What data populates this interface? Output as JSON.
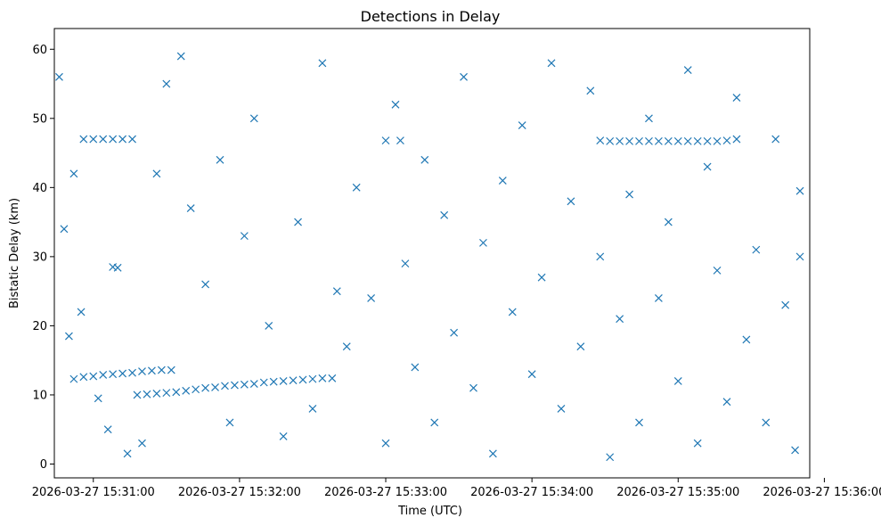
{
  "chart_data": {
    "type": "scatter",
    "title": "Detections in Delay",
    "xlabel": "Time (UTC)",
    "ylabel": "Bistatic Delay (km)",
    "marker": "x",
    "marker_color": "#1f77b4",
    "grid": false,
    "x_date": "2026-03-27",
    "x_ticks": [
      "15:31:00",
      "15:32:00",
      "15:33:00",
      "15:34:00",
      "15:35:00",
      "15:36:00"
    ],
    "x_tick_labels": [
      "2026-03-27 15:31:00",
      "2026-03-27 15:32:00",
      "2026-03-27 15:33:00",
      "2026-03-27 15:34:00",
      "2026-03-27 15:35:00",
      "2026-03-27 15:36:00"
    ],
    "xlim": [
      "15:30:44",
      "15:35:54"
    ],
    "y_ticks": [
      0,
      10,
      20,
      30,
      40,
      50,
      60
    ],
    "ylim": [
      -2,
      63
    ],
    "series": [
      {
        "values": [
          [
            "15:30:52",
            12.3
          ],
          [
            "15:30:56",
            12.6
          ],
          [
            "15:31:00",
            12.7
          ],
          [
            "15:31:04",
            12.9
          ],
          [
            "15:31:08",
            13.0
          ],
          [
            "15:31:12",
            13.1
          ],
          [
            "15:31:16",
            13.2
          ],
          [
            "15:31:20",
            13.4
          ],
          [
            "15:31:24",
            13.5
          ],
          [
            "15:31:28",
            13.6
          ],
          [
            "15:31:32",
            13.6
          ],
          [
            "15:31:18",
            10.0
          ],
          [
            "15:31:22",
            10.1
          ],
          [
            "15:31:26",
            10.2
          ],
          [
            "15:31:30",
            10.3
          ],
          [
            "15:31:34",
            10.4
          ],
          [
            "15:31:38",
            10.6
          ],
          [
            "15:31:42",
            10.8
          ],
          [
            "15:31:46",
            11.0
          ],
          [
            "15:31:50",
            11.1
          ],
          [
            "15:31:54",
            11.3
          ],
          [
            "15:31:58",
            11.4
          ],
          [
            "15:32:02",
            11.5
          ],
          [
            "15:32:06",
            11.6
          ],
          [
            "15:32:10",
            11.8
          ],
          [
            "15:32:14",
            11.9
          ],
          [
            "15:32:18",
            12.0
          ],
          [
            "15:32:22",
            12.1
          ],
          [
            "15:32:26",
            12.2
          ],
          [
            "15:32:30",
            12.3
          ],
          [
            "15:32:34",
            12.4
          ],
          [
            "15:32:38",
            12.4
          ],
          [
            "15:30:56",
            47.0
          ],
          [
            "15:31:00",
            47.0
          ],
          [
            "15:31:04",
            47.0
          ],
          [
            "15:31:08",
            47.0
          ],
          [
            "15:31:12",
            47.0
          ],
          [
            "15:31:16",
            47.0
          ],
          [
            "15:31:08",
            28.5
          ],
          [
            "15:31:10",
            28.4
          ],
          [
            "15:33:00",
            46.8
          ],
          [
            "15:33:06",
            46.8
          ],
          [
            "15:34:28",
            46.8
          ],
          [
            "15:34:32",
            46.7
          ],
          [
            "15:34:36",
            46.7
          ],
          [
            "15:34:40",
            46.7
          ],
          [
            "15:34:44",
            46.7
          ],
          [
            "15:34:48",
            46.7
          ],
          [
            "15:34:52",
            46.7
          ],
          [
            "15:34:56",
            46.7
          ],
          [
            "15:35:00",
            46.7
          ],
          [
            "15:35:04",
            46.7
          ],
          [
            "15:35:08",
            46.7
          ],
          [
            "15:35:12",
            46.7
          ],
          [
            "15:35:16",
            46.7
          ],
          [
            "15:35:20",
            46.8
          ],
          [
            "15:35:24",
            47.0
          ],
          [
            "15:30:46",
            56.0
          ],
          [
            "15:30:48",
            34.0
          ],
          [
            "15:30:50",
            18.5
          ],
          [
            "15:30:52",
            42.0
          ],
          [
            "15:30:55",
            22.0
          ],
          [
            "15:31:02",
            9.5
          ],
          [
            "15:31:06",
            5.0
          ],
          [
            "15:31:14",
            1.5
          ],
          [
            "15:31:20",
            3.0
          ],
          [
            "15:31:26",
            42.0
          ],
          [
            "15:31:30",
            55.0
          ],
          [
            "15:31:36",
            59.0
          ],
          [
            "15:31:40",
            37.0
          ],
          [
            "15:31:46",
            26.0
          ],
          [
            "15:31:52",
            44.0
          ],
          [
            "15:31:56",
            6.0
          ],
          [
            "15:32:02",
            33.0
          ],
          [
            "15:32:06",
            50.0
          ],
          [
            "15:32:12",
            20.0
          ],
          [
            "15:32:18",
            4.0
          ],
          [
            "15:32:24",
            35.0
          ],
          [
            "15:32:30",
            8.0
          ],
          [
            "15:32:34",
            58.0
          ],
          [
            "15:32:40",
            25.0
          ],
          [
            "15:32:44",
            17.0
          ],
          [
            "15:32:48",
            40.0
          ],
          [
            "15:32:54",
            24.0
          ],
          [
            "15:33:00",
            3.0
          ],
          [
            "15:33:04",
            52.0
          ],
          [
            "15:33:08",
            29.0
          ],
          [
            "15:33:12",
            14.0
          ],
          [
            "15:33:16",
            44.0
          ],
          [
            "15:33:20",
            6.0
          ],
          [
            "15:33:24",
            36.0
          ],
          [
            "15:33:28",
            19.0
          ],
          [
            "15:33:32",
            56.0
          ],
          [
            "15:33:36",
            11.0
          ],
          [
            "15:33:40",
            32.0
          ],
          [
            "15:33:44",
            1.5
          ],
          [
            "15:33:48",
            41.0
          ],
          [
            "15:33:52",
            22.0
          ],
          [
            "15:33:56",
            49.0
          ],
          [
            "15:34:00",
            13.0
          ],
          [
            "15:34:04",
            27.0
          ],
          [
            "15:34:08",
            58.0
          ],
          [
            "15:34:12",
            8.0
          ],
          [
            "15:34:16",
            38.0
          ],
          [
            "15:34:20",
            17.0
          ],
          [
            "15:34:24",
            54.0
          ],
          [
            "15:34:28",
            30.0
          ],
          [
            "15:34:32",
            1.0
          ],
          [
            "15:34:36",
            21.0
          ],
          [
            "15:34:40",
            39.0
          ],
          [
            "15:34:44",
            6.0
          ],
          [
            "15:34:48",
            50.0
          ],
          [
            "15:34:52",
            24.0
          ],
          [
            "15:34:56",
            35.0
          ],
          [
            "15:35:00",
            12.0
          ],
          [
            "15:35:04",
            57.0
          ],
          [
            "15:35:08",
            3.0
          ],
          [
            "15:35:12",
            43.0
          ],
          [
            "15:35:16",
            28.0
          ],
          [
            "15:35:20",
            9.0
          ],
          [
            "15:35:24",
            53.0
          ],
          [
            "15:35:28",
            18.0
          ],
          [
            "15:35:32",
            31.0
          ],
          [
            "15:35:36",
            6.0
          ],
          [
            "15:35:40",
            47.0
          ],
          [
            "15:35:44",
            23.0
          ],
          [
            "15:35:48",
            2.0
          ],
          [
            "15:35:50",
            39.5
          ],
          [
            "15:35:50",
            30.0
          ]
        ]
      }
    ]
  }
}
